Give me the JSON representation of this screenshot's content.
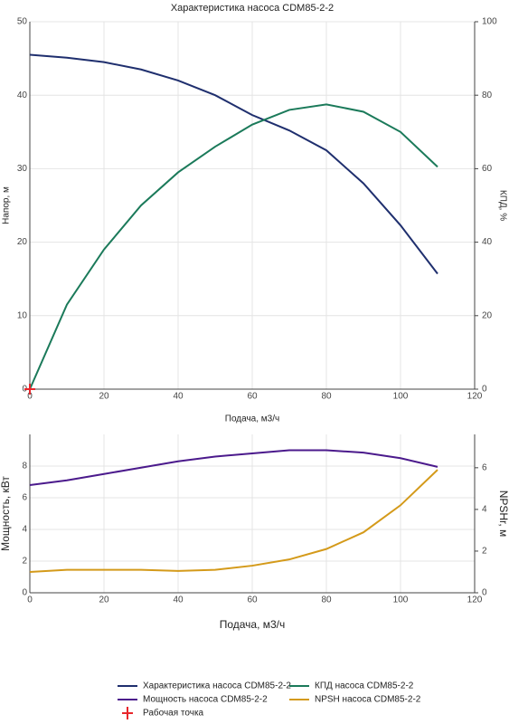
{
  "chart_data": [
    {
      "type": "line",
      "title": "Характеристика насоса CDM85-2-2",
      "xlabel": "Подача, м3/ч",
      "ylabel": "Напор, м",
      "y2label": "КПД, %",
      "x": [
        0,
        10,
        20,
        30,
        40,
        50,
        60,
        70,
        80,
        90,
        100,
        110
      ],
      "series": [
        {
          "name": "Характеристика насоса CDM85-2-2",
          "color": "#1f2f6e",
          "values": [
            45.5,
            45.1,
            44.5,
            43.5,
            42,
            40,
            37.3,
            35.2,
            32.5,
            28,
            22.3,
            15.7
          ]
        },
        {
          "name": "КПД насоса CDM85-2-2",
          "color": "#1b7a5a",
          "axis": "y2",
          "values": [
            0,
            23,
            38,
            50,
            59,
            66,
            72,
            76,
            77.5,
            75.5,
            70,
            60.5
          ]
        }
      ],
      "points": {
        "name": "Рабочая точка",
        "color": "#e8262b",
        "x": [
          0
        ],
        "values": [
          0
        ]
      },
      "xlim": [
        0,
        120
      ],
      "xticks": [
        0,
        20,
        40,
        60,
        80,
        100,
        120
      ],
      "ylim": [
        0,
        50
      ],
      "yticks": [
        0,
        10,
        20,
        30,
        40,
        50
      ],
      "y2lim": [
        0,
        100
      ],
      "y2ticks": [
        0,
        20,
        40,
        60,
        80,
        100
      ],
      "grid": true
    },
    {
      "type": "line",
      "xlabel": "Подача, м3/ч",
      "ylabel": "Мощность, кВт",
      "y2label": "NPSHr, м",
      "x": [
        0,
        10,
        20,
        30,
        40,
        50,
        60,
        70,
        80,
        90,
        100,
        110
      ],
      "series": [
        {
          "name": "Мощность насоса CDM85-2-2",
          "color": "#4b1a8c",
          "values": [
            6.8,
            7.1,
            7.5,
            7.9,
            8.3,
            8.6,
            8.8,
            9.0,
            9.0,
            8.85,
            8.5,
            7.95
          ]
        },
        {
          "name": "NPSH насоса CDM85-2-2",
          "color": "#d49a1a",
          "axis": "y2",
          "values": [
            1.0,
            1.1,
            1.1,
            1.1,
            1.05,
            1.1,
            1.3,
            1.6,
            2.1,
            2.9,
            4.2,
            5.9
          ]
        }
      ],
      "xlim": [
        0,
        120
      ],
      "xticks": [
        0,
        20,
        40,
        60,
        80,
        100,
        120
      ],
      "ylim": [
        0,
        10
      ],
      "yticks": [
        0,
        2,
        4,
        6,
        8
      ],
      "y2lim": [
        0,
        7.6
      ],
      "y2ticks": [
        0,
        2,
        4,
        6
      ],
      "grid": true
    }
  ]
}
